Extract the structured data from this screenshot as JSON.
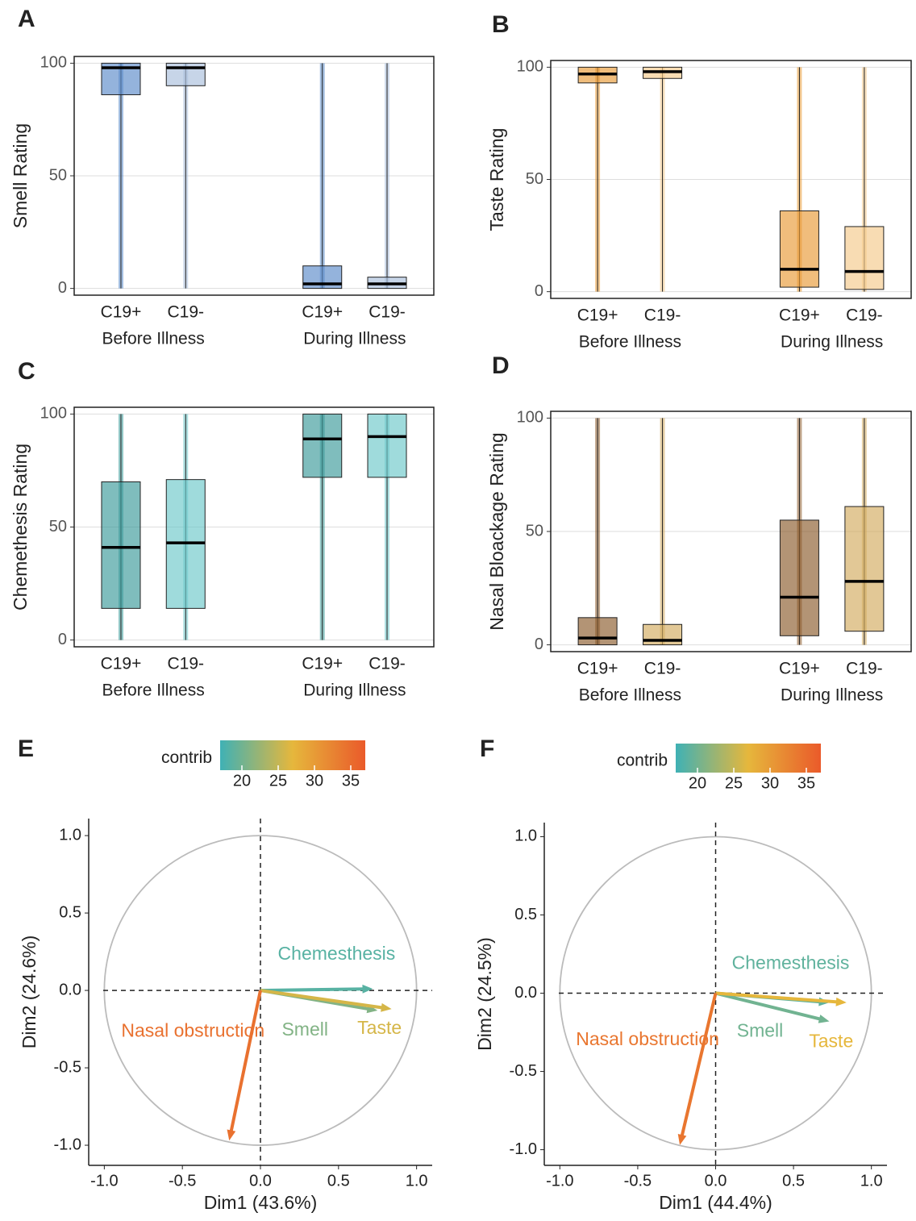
{
  "chart_data": [
    {
      "type": "box",
      "panel_label": "A",
      "ylabel": "Smell Rating",
      "categories": [
        "C19+",
        "C19-",
        "C19+",
        "C19-"
      ],
      "groups": [
        "Before Illness",
        "During Illness"
      ],
      "colors": [
        "#5b8bc9",
        "#a9bedb",
        "#5b8bc9",
        "#a9bedb"
      ],
      "min": [
        0,
        0,
        0,
        0
      ],
      "q1": [
        86,
        90,
        0,
        0
      ],
      "median": [
        98,
        98,
        2,
        2
      ],
      "q3": [
        100,
        100,
        10,
        5
      ],
      "max": [
        100,
        100,
        100,
        100
      ],
      "ylim": [
        -3,
        103
      ],
      "yticks": [
        0,
        50,
        100
      ],
      "grid": true
    },
    {
      "type": "box",
      "panel_label": "B",
      "ylabel": "Taste Rating",
      "categories": [
        "C19+",
        "C19-",
        "C19+",
        "C19-"
      ],
      "groups": [
        "Before Illness",
        "During Illness"
      ],
      "colors": [
        "#e89a35",
        "#f4c98a",
        "#e89a35",
        "#f4c98a"
      ],
      "min": [
        0,
        0,
        0,
        0
      ],
      "q1": [
        93,
        95,
        2,
        1
      ],
      "median": [
        97,
        98,
        10,
        9
      ],
      "q3": [
        100,
        100,
        36,
        29
      ],
      "max": [
        100,
        100,
        100,
        100
      ],
      "ylim": [
        -3,
        103
      ],
      "yticks": [
        0,
        50,
        100
      ],
      "grid": true
    },
    {
      "type": "box",
      "panel_label": "C",
      "ylabel": "Chemethesis Rating",
      "categories": [
        "C19+",
        "C19-",
        "C19+",
        "C19-"
      ],
      "groups": [
        "Before Illness",
        "During Illness"
      ],
      "colors": [
        "#3a9a99",
        "#6cc7c9",
        "#3a9a99",
        "#6cc7c9"
      ],
      "min": [
        0,
        0,
        0,
        0
      ],
      "q1": [
        14,
        14,
        72,
        72
      ],
      "median": [
        41,
        43,
        89,
        90
      ],
      "q3": [
        70,
        71,
        100,
        100
      ],
      "max": [
        100,
        100,
        100,
        100
      ],
      "ylim": [
        -3,
        103
      ],
      "yticks": [
        0,
        50,
        100
      ],
      "grid": true
    },
    {
      "type": "box",
      "panel_label": "D",
      "ylabel": "Nasal Bloackage Rating",
      "categories": [
        "C19+",
        "C19-",
        "C19+",
        "C19-"
      ],
      "groups": [
        "Before Illness",
        "During Illness"
      ],
      "colors": [
        "#8b5a2b",
        "#d2aa5e",
        "#8b5a2b",
        "#d2aa5e"
      ],
      "min": [
        0,
        0,
        0,
        0
      ],
      "q1": [
        0,
        0,
        4,
        6
      ],
      "median": [
        3,
        2,
        21,
        28
      ],
      "q3": [
        12,
        9,
        55,
        61
      ],
      "max": [
        100,
        100,
        100,
        100
      ],
      "ylim": [
        -3,
        103
      ],
      "yticks": [
        0,
        50,
        100
      ],
      "grid": true
    },
    {
      "type": "vector",
      "panel_label": "E",
      "xlabel": "Dim1 (43.6%)",
      "ylabel": "Dim2 (24.6%)",
      "colorbar": {
        "title": "contrib",
        "lim": [
          17,
          37
        ],
        "ticks": [
          20,
          25,
          30,
          35
        ],
        "colors": [
          "#3fb1b5",
          "#e6b73c",
          "#ea5a2a"
        ]
      },
      "series": [
        {
          "name": "Chemesthesis",
          "x": 0.72,
          "y": 0.01,
          "contrib": 18.5
        },
        {
          "name": "Smell",
          "x": 0.75,
          "y": -0.13,
          "contrib": 21
        },
        {
          "name": "Taste",
          "x": 0.84,
          "y": -0.12,
          "contrib": 26
        },
        {
          "name": "Nasal obstruction",
          "x": -0.2,
          "y": -0.97,
          "contrib": 34.5
        }
      ],
      "xlim": [
        -1.1,
        1.1
      ],
      "ylim": [
        -1.13,
        1.11
      ],
      "xticks": [
        {
          "value": -1,
          "label": "-1.0"
        },
        {
          "value": -0.5,
          "label": "-0.5"
        },
        {
          "value": 0,
          "label": "0.0"
        },
        {
          "value": 0.5,
          "label": "0.5"
        },
        {
          "value": 1,
          "label": "1.0"
        }
      ],
      "yticks": [
        {
          "value": -1,
          "label": "-1.0"
        },
        {
          "value": -0.5,
          "label": "-0.5"
        },
        {
          "value": 0,
          "label": "0.0"
        },
        {
          "value": 0.5,
          "label": "0.5"
        },
        {
          "value": 1,
          "label": "1.0"
        }
      ]
    },
    {
      "type": "vector",
      "panel_label": "F",
      "xlabel": "Dim1 (44.4%)",
      "ylabel": "Dim2 (24.5%)",
      "colorbar": {
        "title": "contrib",
        "lim": [
          17,
          37
        ],
        "ticks": [
          20,
          25,
          30,
          35
        ],
        "colors": [
          "#3fb1b5",
          "#e6b73c",
          "#ea5a2a"
        ]
      },
      "series": [
        {
          "name": "Chemesthesis",
          "x": 0.73,
          "y": -0.06,
          "contrib": 19
        },
        {
          "name": "Smell",
          "x": 0.73,
          "y": -0.18,
          "contrib": 20
        },
        {
          "name": "Taste",
          "x": 0.84,
          "y": -0.06,
          "contrib": 27
        },
        {
          "name": "Nasal obstruction",
          "x": -0.23,
          "y": -0.97,
          "contrib": 34
        }
      ],
      "xlim": [
        -1.1,
        1.1
      ],
      "ylim": [
        -1.1,
        1.09
      ],
      "xticks": [
        {
          "value": -1,
          "label": "-1.0"
        },
        {
          "value": -0.5,
          "label": "-0.5"
        },
        {
          "value": 0,
          "label": "0.0"
        },
        {
          "value": 0.5,
          "label": "0.5"
        },
        {
          "value": 1,
          "label": "1.0"
        }
      ],
      "yticks": [
        {
          "value": -1,
          "label": "-1.0"
        },
        {
          "value": -0.5,
          "label": "-0.5"
        },
        {
          "value": 0,
          "label": "0.0"
        },
        {
          "value": 0.5,
          "label": "0.5"
        },
        {
          "value": 1,
          "label": "1.0"
        }
      ]
    }
  ]
}
